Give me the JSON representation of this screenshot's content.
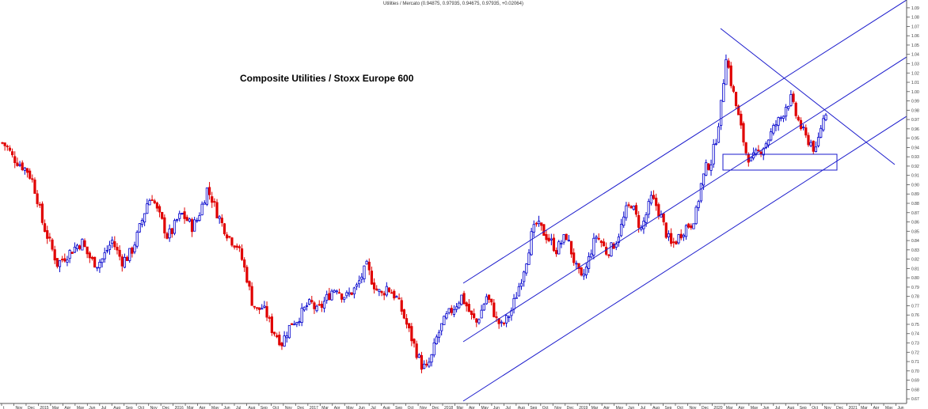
{
  "header": "Utilities / Mercato (0.94875, 0.97935, 0.94675, 0.97935, +0.02064)",
  "chart_data": {
    "type": "candlestick",
    "title": "Composite Utilities / Stoxx Europe 600",
    "ylim": [
      0.665,
      1.095
    ],
    "yticks": [
      "0.67",
      "0.68",
      "0.69",
      "0.70",
      "0.71",
      "0.72",
      "0.73",
      "0.74",
      "0.75",
      "0.76",
      "0.77",
      "0.78",
      "0.79",
      "0.80",
      "0.81",
      "0.82",
      "0.83",
      "0.84",
      "0.85",
      "0.86",
      "0.87",
      "0.88",
      "0.89",
      "0.90",
      "0.91",
      "0.92",
      "0.93",
      "0.94",
      "0.95",
      "0.96",
      "0.97",
      "0.98",
      "0.99",
      "1.00",
      "1.01",
      "1.02",
      "1.03",
      "1.04",
      "1.05",
      "1.06",
      "1.07",
      "1.08",
      "1.09"
    ],
    "xtick_labels": [
      "t",
      "Nov",
      "Dec",
      "2015",
      "Mar",
      "Apr",
      "May",
      "Jun",
      "Jul",
      "Aug",
      "Sep",
      "Oct",
      "Nov",
      "Dec",
      "2016",
      "Mar",
      "Apr",
      "May",
      "Jun",
      "Jul",
      "Aug",
      "Sep",
      "Oct",
      "Nov",
      "Dec",
      "2017",
      "Mar",
      "Apr",
      "May",
      "Jun",
      "Jul",
      "Aug",
      "Sep",
      "Oct",
      "Nov",
      "Dec",
      "2018",
      "Mar",
      "Apr",
      "May",
      "Jun",
      "Jul",
      "Aug",
      "Sep",
      "Oct",
      "Nov",
      "Dec",
      "2019",
      "Mar",
      "Apr",
      "May",
      "Jun",
      "Jul",
      "Aug",
      "Sep",
      "Oct",
      "Nov",
      "Dec",
      "2020",
      "Mar",
      "Apr",
      "May",
      "Jun",
      "Jul",
      "Aug",
      "Sep",
      "Oct",
      "Nov",
      "Dec",
      "2021",
      "Mar",
      "Apr",
      "May",
      "Jun"
    ],
    "close_path": [
      [
        0,
        0.945
      ],
      [
        2,
        0.94
      ],
      [
        4,
        0.93
      ],
      [
        6,
        0.925
      ],
      [
        8,
        0.92
      ],
      [
        10,
        0.915
      ],
      [
        12,
        0.905
      ],
      [
        14,
        0.885
      ],
      [
        16,
        0.86
      ],
      [
        18,
        0.845
      ],
      [
        20,
        0.83
      ],
      [
        22,
        0.815
      ],
      [
        24,
        0.82
      ],
      [
        26,
        0.825
      ],
      [
        28,
        0.83
      ],
      [
        30,
        0.835
      ],
      [
        32,
        0.838
      ],
      [
        34,
        0.826
      ],
      [
        36,
        0.818
      ],
      [
        38,
        0.815
      ],
      [
        40,
        0.82
      ],
      [
        42,
        0.83
      ],
      [
        44,
        0.84
      ],
      [
        46,
        0.828
      ],
      [
        48,
        0.818
      ],
      [
        50,
        0.822
      ],
      [
        52,
        0.83
      ],
      [
        54,
        0.845
      ],
      [
        56,
        0.862
      ],
      [
        58,
        0.88
      ],
      [
        60,
        0.888
      ],
      [
        62,
        0.872
      ],
      [
        64,
        0.86
      ],
      [
        66,
        0.845
      ],
      [
        68,
        0.85
      ],
      [
        70,
        0.862
      ],
      [
        72,
        0.868
      ],
      [
        74,
        0.862
      ],
      [
        76,
        0.855
      ],
      [
        78,
        0.862
      ],
      [
        80,
        0.878
      ],
      [
        82,
        0.895
      ],
      [
        84,
        0.885
      ],
      [
        86,
        0.87
      ],
      [
        88,
        0.858
      ],
      [
        90,
        0.848
      ],
      [
        92,
        0.84
      ],
      [
        94,
        0.835
      ],
      [
        96,
        0.82
      ],
      [
        98,
        0.8
      ],
      [
        100,
        0.775
      ],
      [
        102,
        0.765
      ],
      [
        104,
        0.768
      ],
      [
        106,
        0.76
      ],
      [
        108,
        0.745
      ],
      [
        110,
        0.738
      ],
      [
        112,
        0.73
      ],
      [
        114,
        0.742
      ],
      [
        116,
        0.752
      ],
      [
        118,
        0.755
      ],
      [
        120,
        0.762
      ],
      [
        122,
        0.77
      ],
      [
        124,
        0.772
      ],
      [
        126,
        0.764
      ],
      [
        128,
        0.77
      ],
      [
        130,
        0.778
      ],
      [
        132,
        0.786
      ],
      [
        134,
        0.79
      ],
      [
        136,
        0.782
      ],
      [
        138,
        0.78
      ],
      [
        140,
        0.785
      ],
      [
        142,
        0.79
      ],
      [
        144,
        0.802
      ],
      [
        146,
        0.812
      ],
      [
        148,
        0.798
      ],
      [
        150,
        0.787
      ],
      [
        152,
        0.782
      ],
      [
        154,
        0.79
      ],
      [
        156,
        0.785
      ],
      [
        158,
        0.778
      ],
      [
        160,
        0.765
      ],
      [
        162,
        0.75
      ],
      [
        164,
        0.735
      ],
      [
        166,
        0.72
      ],
      [
        168,
        0.706
      ],
      [
        170,
        0.702
      ],
      [
        172,
        0.715
      ],
      [
        174,
        0.735
      ],
      [
        176,
        0.748
      ],
      [
        178,
        0.758
      ],
      [
        180,
        0.765
      ],
      [
        182,
        0.772
      ],
      [
        184,
        0.78
      ],
      [
        186,
        0.77
      ],
      [
        188,
        0.758
      ],
      [
        190,
        0.752
      ],
      [
        192,
        0.765
      ],
      [
        194,
        0.78
      ],
      [
        196,
        0.77
      ],
      [
        198,
        0.755
      ],
      [
        200,
        0.748
      ],
      [
        202,
        0.755
      ],
      [
        204,
        0.765
      ],
      [
        206,
        0.782
      ],
      [
        208,
        0.8
      ],
      [
        210,
        0.82
      ],
      [
        212,
        0.845
      ],
      [
        214,
        0.858
      ],
      [
        216,
        0.852
      ],
      [
        218,
        0.845
      ],
      [
        220,
        0.838
      ],
      [
        222,
        0.83
      ],
      [
        224,
        0.838
      ],
      [
        226,
        0.845
      ],
      [
        228,
        0.828
      ],
      [
        230,
        0.81
      ],
      [
        232,
        0.798
      ],
      [
        234,
        0.81
      ],
      [
        236,
        0.83
      ],
      [
        238,
        0.845
      ],
      [
        240,
        0.838
      ],
      [
        242,
        0.828
      ],
      [
        244,
        0.832
      ],
      [
        246,
        0.84
      ],
      [
        248,
        0.855
      ],
      [
        250,
        0.872
      ],
      [
        252,
        0.88
      ],
      [
        254,
        0.865
      ],
      [
        256,
        0.852
      ],
      [
        258,
        0.868
      ],
      [
        260,
        0.885
      ],
      [
        262,
        0.878
      ],
      [
        264,
        0.865
      ],
      [
        266,
        0.848
      ],
      [
        268,
        0.835
      ],
      [
        270,
        0.84
      ],
      [
        272,
        0.848
      ],
      [
        274,
        0.855
      ],
      [
        276,
        0.858
      ],
      [
        278,
        0.87
      ],
      [
        280,
        0.9
      ],
      [
        282,
        0.918
      ],
      [
        284,
        0.925
      ],
      [
        286,
        0.95
      ],
      [
        288,
        0.985
      ],
      [
        290,
        1.04
      ],
      [
        292,
        1.01
      ],
      [
        294,
        0.985
      ],
      [
        296,
        0.96
      ],
      [
        298,
        0.935
      ],
      [
        300,
        0.925
      ],
      [
        302,
        0.932
      ],
      [
        304,
        0.938
      ],
      [
        306,
        0.945
      ],
      [
        308,
        0.955
      ],
      [
        310,
        0.965
      ],
      [
        312,
        0.972
      ],
      [
        314,
        0.985
      ],
      [
        316,
        0.992
      ],
      [
        318,
        0.975
      ],
      [
        320,
        0.962
      ],
      [
        322,
        0.95
      ],
      [
        324,
        0.945
      ],
      [
        326,
        0.935
      ],
      [
        328,
        0.962
      ],
      [
        330,
        0.979
      ]
    ],
    "overlay": {
      "channel_lines": [
        "upper-channel",
        "middle-channel",
        "lower-channel"
      ],
      "trend_line": "descending-trendline",
      "box": "support-rectangle"
    },
    "colors": {
      "up": "#0000cc",
      "down": "#e00000",
      "lines": "#1a1acc",
      "axis": "#555555"
    }
  }
}
